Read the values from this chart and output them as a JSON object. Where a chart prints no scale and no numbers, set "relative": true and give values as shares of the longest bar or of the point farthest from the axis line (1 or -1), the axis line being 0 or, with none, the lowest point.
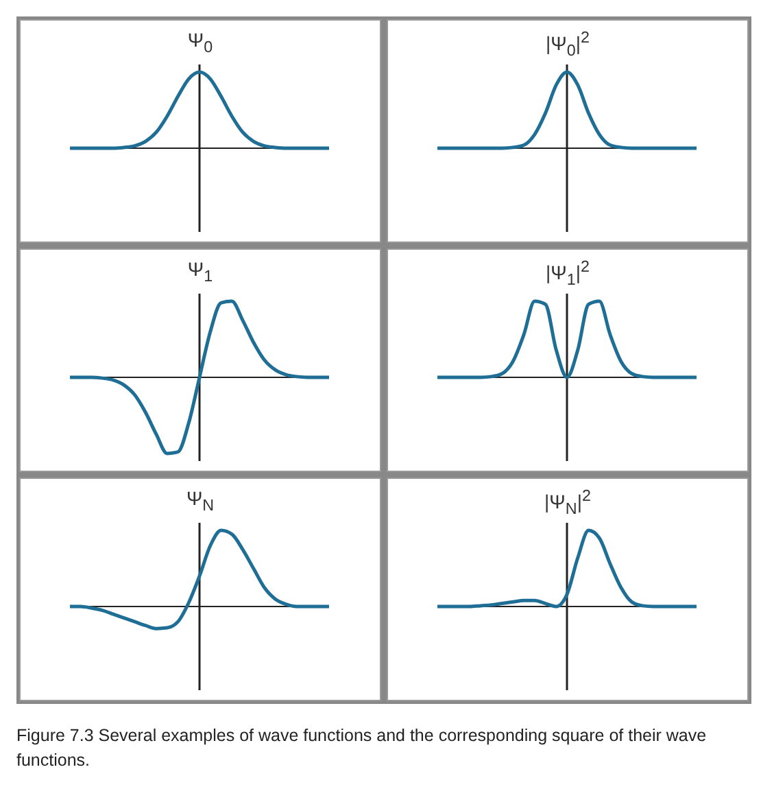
{
  "chart_data": [
    {
      "type": "line",
      "title": "Ψ$_{0}$",
      "relative": true,
      "categories": [
        null,
        null,
        null,
        null,
        null,
        null,
        null,
        null,
        null,
        null,
        null,
        null,
        null,
        null,
        null,
        null,
        null,
        null,
        null,
        null,
        null,
        null,
        null,
        null,
        null
      ],
      "series": [
        {
          "color": "#1f6e96",
          "values": [
            0,
            0,
            0,
            0,
            0,
            0.01,
            0.03,
            0.09,
            0.21,
            0.42,
            0.68,
            0.91,
            1,
            0.91,
            0.68,
            0.42,
            0.21,
            0.09,
            0.03,
            0.01,
            0,
            0,
            0,
            0,
            0
          ]
        }
      ]
    },
    {
      "type": "line",
      "title": "|Ψ$_{0}$|$^{2}$",
      "relative": true,
      "categories": [
        null,
        null,
        null,
        null,
        null,
        null,
        null,
        null,
        null,
        null,
        null,
        null,
        null,
        null,
        null,
        null,
        null,
        null,
        null,
        null,
        null,
        null,
        null,
        null,
        null
      ],
      "series": [
        {
          "color": "#1f6e96",
          "values": [
            0,
            0,
            0,
            0,
            0,
            0,
            0,
            0.01,
            0.04,
            0.18,
            0.46,
            0.83,
            1,
            0.83,
            0.46,
            0.18,
            0.04,
            0.01,
            0,
            0,
            0,
            0,
            0,
            0,
            0
          ]
        }
      ]
    },
    {
      "type": "line",
      "title": "Ψ$_{1}$",
      "relative": true,
      "categories": [
        null,
        null,
        null,
        null,
        null,
        null,
        null,
        null,
        null,
        null,
        null,
        null,
        null,
        null,
        null,
        null,
        null,
        null,
        null,
        null,
        null,
        null,
        null,
        null,
        null
      ],
      "series": [
        {
          "color": "#1f6e96",
          "values": [
            0,
            0,
            0,
            -0.01,
            -0.035,
            -0.1,
            -0.23,
            -0.46,
            -0.75,
            -1,
            -0.98,
            -0.6,
            0,
            0.6,
            0.98,
            1,
            0.75,
            0.46,
            0.23,
            0.1,
            0.035,
            0.01,
            0,
            0,
            0
          ]
        }
      ]
    },
    {
      "type": "line",
      "title": "|Ψ$_{1}$|$^{2}$",
      "relative": true,
      "categories": [
        null,
        null,
        null,
        null,
        null,
        null,
        null,
        null,
        null,
        null,
        null,
        null,
        null,
        null,
        null,
        null,
        null,
        null,
        null,
        null,
        null,
        null,
        null,
        null,
        null
      ],
      "series": [
        {
          "color": "#1f6e96",
          "values": [
            0,
            0,
            0,
            0,
            0,
            0.01,
            0.05,
            0.21,
            0.56,
            1,
            0.96,
            0.36,
            0,
            0.36,
            0.96,
            1,
            0.56,
            0.21,
            0.05,
            0.01,
            0,
            0,
            0,
            0,
            0
          ]
        }
      ]
    },
    {
      "type": "line",
      "title": "Ψ$_{N}$",
      "relative": true,
      "categories": [
        null,
        null,
        null,
        null,
        null,
        null,
        null,
        null,
        null,
        null,
        null,
        null,
        null,
        null,
        null,
        null,
        null,
        null,
        null,
        null,
        null,
        null,
        null,
        null,
        null
      ],
      "series": [
        {
          "color": "#1f6e96",
          "values": [
            0,
            0,
            -0.02,
            -0.05,
            -0.1,
            -0.15,
            -0.2,
            -0.25,
            -0.29,
            -0.28,
            -0.2,
            0.05,
            0.4,
            0.8,
            1,
            0.95,
            0.75,
            0.5,
            0.25,
            0.1,
            0.03,
            0,
            0,
            0,
            0
          ]
        }
      ]
    },
    {
      "type": "line",
      "title": "|Ψ$_{N}$|$^{2}$",
      "relative": true,
      "categories": [
        null,
        null,
        null,
        null,
        null,
        null,
        null,
        null,
        null,
        null,
        null,
        null,
        null,
        null,
        null,
        null,
        null,
        null,
        null,
        null,
        null,
        null,
        null,
        null,
        null
      ],
      "series": [
        {
          "color": "#1f6e96",
          "values": [
            0,
            0,
            0,
            0,
            0.01,
            0.02,
            0.04,
            0.06,
            0.08,
            0.08,
            0.04,
            0,
            0.16,
            0.64,
            1,
            0.9,
            0.56,
            0.25,
            0.06,
            0.01,
            0,
            0,
            0,
            0,
            0
          ]
        }
      ],
      "annotations": [
        "Figure 7.3 Several examples of wave functions and the corresponding square of their wave functions."
      ]
    }
  ]
}
